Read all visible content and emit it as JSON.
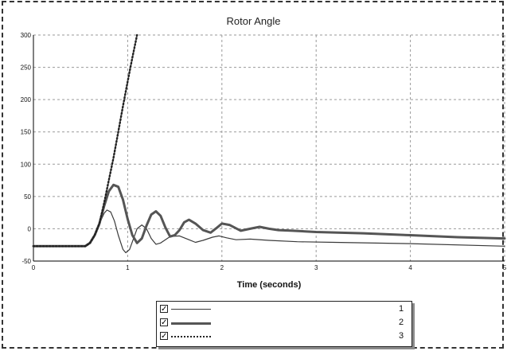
{
  "chart_data": {
    "type": "line",
    "title": "Rotor Angle",
    "xlabel": "Time (seconds)",
    "ylabel": "",
    "xlim": [
      0,
      5
    ],
    "ylim": [
      -50,
      300
    ],
    "xticks": [
      0,
      1,
      2,
      3,
      4,
      5
    ],
    "yticks": [
      -50,
      0,
      50,
      100,
      150,
      200,
      250,
      300
    ],
    "grid": true,
    "legend_position": "bottom-center",
    "series": [
      {
        "name": "1",
        "style": "thin-solid",
        "color": "#3a3a3a",
        "points": [
          [
            0,
            -27
          ],
          [
            0.55,
            -27
          ],
          [
            0.6,
            -22
          ],
          [
            0.65,
            -10
          ],
          [
            0.7,
            8
          ],
          [
            0.75,
            24
          ],
          [
            0.78,
            29
          ],
          [
            0.82,
            26
          ],
          [
            0.86,
            12
          ],
          [
            0.9,
            -10
          ],
          [
            0.95,
            -32
          ],
          [
            0.98,
            -37
          ],
          [
            1.02,
            -32
          ],
          [
            1.06,
            -16
          ],
          [
            1.1,
            0
          ],
          [
            1.15,
            6
          ],
          [
            1.2,
            0
          ],
          [
            1.25,
            -15
          ],
          [
            1.3,
            -24
          ],
          [
            1.35,
            -22
          ],
          [
            1.45,
            -12
          ],
          [
            1.55,
            -11
          ],
          [
            1.65,
            -17
          ],
          [
            1.72,
            -21
          ],
          [
            1.8,
            -18
          ],
          [
            1.9,
            -13
          ],
          [
            1.97,
            -11
          ],
          [
            2.05,
            -14
          ],
          [
            2.15,
            -17
          ],
          [
            2.3,
            -16
          ],
          [
            2.5,
            -18
          ],
          [
            2.8,
            -20
          ],
          [
            3.2,
            -21
          ],
          [
            4,
            -23
          ],
          [
            5,
            -27
          ]
        ]
      },
      {
        "name": "2",
        "style": "thick-solid",
        "color": "#555555",
        "points": [
          [
            0,
            -27
          ],
          [
            0.55,
            -27
          ],
          [
            0.6,
            -22
          ],
          [
            0.65,
            -10
          ],
          [
            0.7,
            8
          ],
          [
            0.75,
            35
          ],
          [
            0.8,
            58
          ],
          [
            0.85,
            68
          ],
          [
            0.9,
            65
          ],
          [
            0.95,
            45
          ],
          [
            1.0,
            15
          ],
          [
            1.05,
            -10
          ],
          [
            1.1,
            -22
          ],
          [
            1.15,
            -15
          ],
          [
            1.2,
            5
          ],
          [
            1.25,
            22
          ],
          [
            1.3,
            27
          ],
          [
            1.35,
            20
          ],
          [
            1.4,
            2
          ],
          [
            1.45,
            -12
          ],
          [
            1.5,
            -10
          ],
          [
            1.55,
            -2
          ],
          [
            1.6,
            10
          ],
          [
            1.65,
            14
          ],
          [
            1.72,
            8
          ],
          [
            1.8,
            -2
          ],
          [
            1.88,
            -6
          ],
          [
            1.95,
            2
          ],
          [
            2.0,
            8
          ],
          [
            2.08,
            6
          ],
          [
            2.2,
            -3
          ],
          [
            2.3,
            0
          ],
          [
            2.4,
            3
          ],
          [
            2.5,
            0
          ],
          [
            2.6,
            -2
          ],
          [
            2.75,
            -3
          ],
          [
            3,
            -5
          ],
          [
            3.5,
            -7
          ],
          [
            4,
            -10
          ],
          [
            4.5,
            -13
          ],
          [
            5,
            -15
          ]
        ]
      },
      {
        "name": "3",
        "style": "dotted",
        "color": "#222222",
        "points": [
          [
            0,
            -27
          ],
          [
            0.55,
            -27
          ],
          [
            0.6,
            -22
          ],
          [
            0.65,
            -10
          ],
          [
            0.7,
            8
          ],
          [
            0.75,
            40
          ],
          [
            0.8,
            75
          ],
          [
            0.85,
            110
          ],
          [
            0.9,
            150
          ],
          [
            0.95,
            190
          ],
          [
            1.0,
            228
          ],
          [
            1.05,
            265
          ],
          [
            1.1,
            300
          ]
        ]
      }
    ]
  }
}
